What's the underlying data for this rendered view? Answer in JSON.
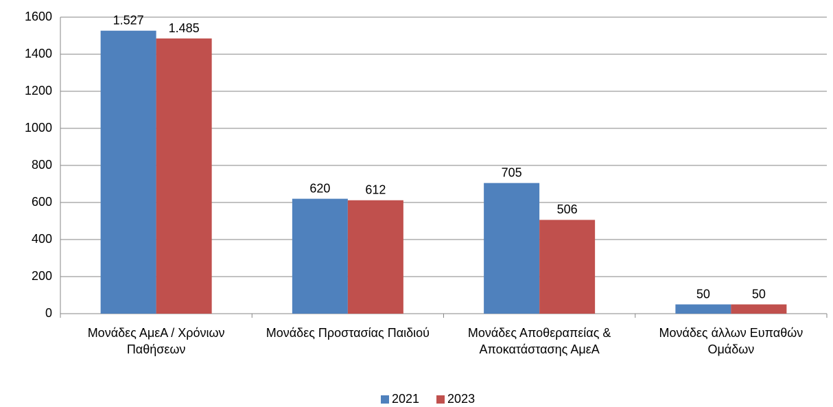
{
  "chart_data": {
    "type": "bar",
    "categories": [
      "Μονάδες ΑμεΑ / Χρόνιων Παθήσεων",
      "Μονάδες Προστασίας Παιδιού",
      "Μονάδες Αποθεραπείας & Αποκατάστασης ΑμεΑ",
      "Μονάδες άλλων Ευπαθών Ομάδων"
    ],
    "series": [
      {
        "name": "2021",
        "color": "#4f81bd",
        "values": [
          1527,
          620,
          705,
          50
        ],
        "value_labels": [
          "1.527",
          "620",
          "705",
          "50"
        ]
      },
      {
        "name": "2023",
        "color": "#c0504d",
        "values": [
          1485,
          612,
          506,
          50
        ],
        "value_labels": [
          "1.485",
          "612",
          "506",
          "50"
        ]
      }
    ],
    "ylim": [
      0,
      1600
    ],
    "yticks": [
      0,
      200,
      400,
      600,
      800,
      1000,
      1200,
      1400,
      1600
    ],
    "grid": true,
    "legend": "bottom"
  }
}
